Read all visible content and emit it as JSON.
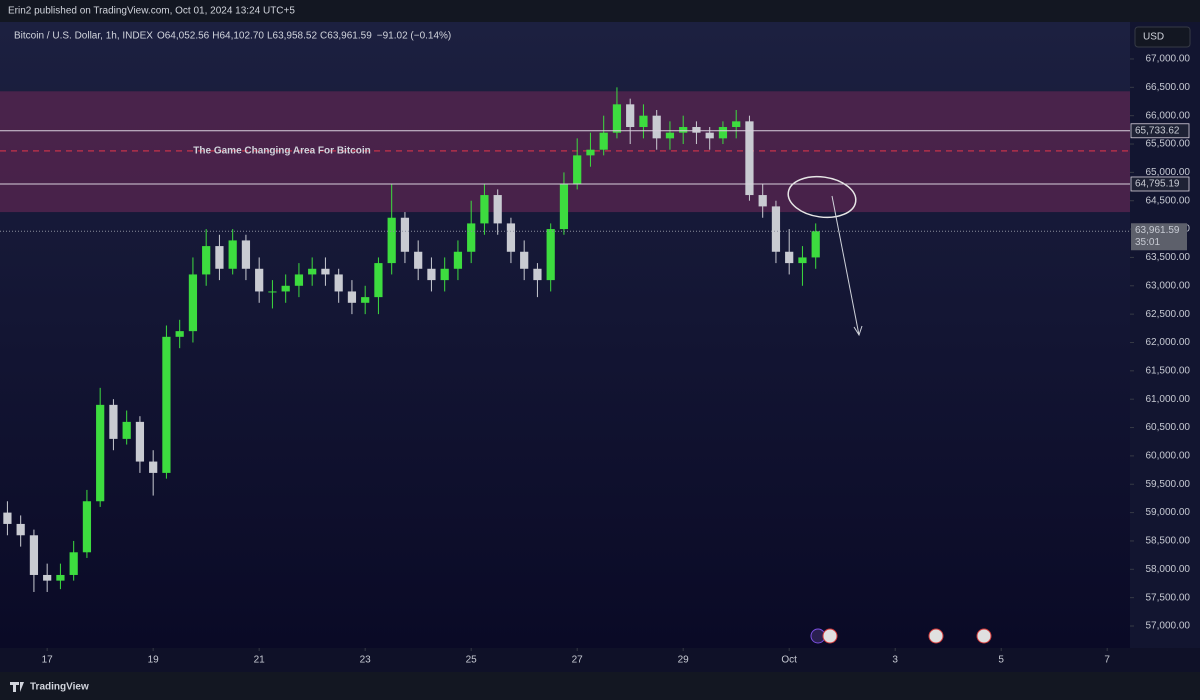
{
  "header": {
    "published": "Erin2 published on TradingView.com, Oct 01, 2024 13:24 UTC+5"
  },
  "footer": {
    "brand": "TradingView"
  },
  "chart_data": {
    "type": "candlestick",
    "symbol": "Bitcoin / U.S. Dollar, 1h, INDEX",
    "quote": [
      {
        "key": "O",
        "value": "64,052.56"
      },
      {
        "key": "H",
        "value": "64,102.70"
      },
      {
        "key": "L",
        "value": "63,958.52"
      },
      {
        "key": "C",
        "value": "63,961.59"
      }
    ],
    "change": "−91.02 (−0.14%)",
    "currency": "USD",
    "annotation": "The Game Changing Area For Bitcoin",
    "up_color": "#3ddc3f",
    "down_color": "#c9cbd2",
    "zone": {
      "top": 66430,
      "bottom": 64300,
      "color": "#5a2550"
    },
    "dashed_line": {
      "value": 65380,
      "color": "#b0304a"
    },
    "hlines": [
      {
        "value": 65733.62,
        "label": "65,733.62"
      },
      {
        "value": 64795.19,
        "label": "64,795.19"
      }
    ],
    "last_price": {
      "value": 63961.59,
      "label": "63,961.59",
      "countdown": "35:01"
    },
    "x": [
      -0.75,
      -0.5,
      -0.25,
      0,
      0.25,
      0.5,
      0.75,
      1,
      1.25,
      1.5,
      1.75,
      2,
      2.25,
      2.5,
      2.75,
      3,
      3.25,
      3.5,
      3.75,
      4,
      4.25,
      4.5,
      4.75,
      5,
      5.25,
      5.5,
      5.75,
      6,
      6.25,
      6.5,
      6.75,
      7,
      7.25,
      7.5,
      7.75,
      8,
      8.25,
      8.5,
      8.75,
      9,
      9.25,
      9.5,
      9.75,
      10,
      10.25,
      10.5,
      10.75,
      11,
      11.25,
      11.5,
      11.75,
      12,
      12.25,
      12.5,
      12.75,
      13,
      13.25,
      13.5,
      13.75,
      14,
      14.25,
      14.5
    ],
    "open": [
      59000,
      58800,
      58600,
      57900,
      57800,
      57900,
      58300,
      59200,
      60900,
      60300,
      60600,
      59900,
      59700,
      62100,
      62200,
      63200,
      63700,
      63300,
      63800,
      63300,
      62900,
      62900,
      63000,
      63200,
      63300,
      63200,
      62900,
      62700,
      62800,
      63400,
      64200,
      63600,
      63300,
      63100,
      63300,
      63600,
      64100,
      64600,
      64100,
      63600,
      63300,
      63100,
      64000,
      64800,
      65300,
      65400,
      65700,
      66200,
      65800,
      66000,
      65600,
      65700,
      65800,
      65700,
      65600,
      65800,
      65900,
      64600,
      64400,
      63600,
      63400,
      63500
    ],
    "high": [
      59200,
      58950,
      58700,
      58100,
      58100,
      58500,
      59400,
      61200,
      61000,
      60800,
      60700,
      60100,
      62300,
      62400,
      63500,
      64000,
      63900,
      64000,
      63900,
      63500,
      63100,
      63200,
      63400,
      63500,
      63500,
      63300,
      63100,
      63000,
      63500,
      64800,
      64300,
      63800,
      63500,
      63500,
      63800,
      64500,
      64800,
      64700,
      64200,
      63800,
      63400,
      64100,
      65000,
      65600,
      65700,
      66000,
      66500,
      66300,
      66200,
      66100,
      65900,
      66000,
      65900,
      65800,
      65900,
      66100,
      66000,
      64800,
      64500,
      64000,
      63700,
      64100
    ],
    "low": [
      58600,
      58400,
      57600,
      57600,
      57650,
      57800,
      58200,
      59100,
      60100,
      60200,
      59700,
      59300,
      59600,
      61900,
      62000,
      63000,
      63100,
      63200,
      63100,
      62700,
      62600,
      62700,
      62800,
      63000,
      63000,
      62700,
      62500,
      62500,
      62500,
      63200,
      63400,
      63100,
      62900,
      62900,
      63100,
      63400,
      63900,
      63900,
      63400,
      63100,
      62800,
      62900,
      63900,
      64700,
      65100,
      65300,
      65600,
      65500,
      65600,
      65400,
      65400,
      65500,
      65500,
      65400,
      65500,
      65600,
      64500,
      64200,
      63400,
      63200,
      63000,
      63300
    ],
    "close": [
      58800,
      58600,
      57900,
      57800,
      57900,
      58300,
      59200,
      60900,
      60300,
      60600,
      59900,
      59700,
      62100,
      62200,
      63200,
      63700,
      63300,
      63800,
      63300,
      62900,
      62900,
      63000,
      63200,
      63300,
      63200,
      62900,
      62700,
      62800,
      63400,
      64200,
      63600,
      63300,
      63100,
      63300,
      63600,
      64100,
      64600,
      64100,
      63600,
      63300,
      63100,
      64000,
      64800,
      65300,
      65400,
      65700,
      66200,
      65800,
      66000,
      65600,
      65700,
      65800,
      65700,
      65600,
      65800,
      65900,
      64600,
      64400,
      63600,
      63400,
      63500,
      63961.59
    ],
    "xlim": [
      -0.89,
      20.43
    ],
    "ylim": [
      56612,
      67652
    ],
    "xticks": [
      {
        "value": 0,
        "label": "17"
      },
      {
        "value": 2,
        "label": "19"
      },
      {
        "value": 4,
        "label": "21"
      },
      {
        "value": 6,
        "label": "23"
      },
      {
        "value": 8,
        "label": "25"
      },
      {
        "value": 10,
        "label": "27"
      },
      {
        "value": 12,
        "label": "29"
      },
      {
        "value": 14,
        "label": "Oct"
      },
      {
        "value": 16,
        "label": "3"
      },
      {
        "value": 18,
        "label": "5"
      },
      {
        "value": 20,
        "label": "7"
      }
    ],
    "yticks": [
      {
        "value": 57000,
        "label": "57,000.00"
      },
      {
        "value": 57500,
        "label": "57,500.00"
      },
      {
        "value": 58000,
        "label": "58,000.00"
      },
      {
        "value": 58500,
        "label": "58,500.00"
      },
      {
        "value": 59000,
        "label": "59,000.00"
      },
      {
        "value": 59500,
        "label": "59,500.00"
      },
      {
        "value": 60000,
        "label": "60,000.00"
      },
      {
        "value": 60500,
        "label": "60,500.00"
      },
      {
        "value": 61000,
        "label": "61,000.00"
      },
      {
        "value": 61500,
        "label": "61,500.00"
      },
      {
        "value": 62000,
        "label": "62,000.00"
      },
      {
        "value": 62500,
        "label": "62,500.00"
      },
      {
        "value": 63000,
        "label": "63,000.00"
      },
      {
        "value": 63500,
        "label": "63,500.00"
      },
      {
        "value": 64000,
        "label": "64,000.00"
      },
      {
        "value": 64500,
        "label": "64,500.00"
      },
      {
        "value": 65000,
        "label": "65,000.00"
      },
      {
        "value": 65500,
        "label": "65,500.00"
      },
      {
        "value": 66000,
        "label": "66,000.00"
      },
      {
        "value": 66500,
        "label": "66,500.00"
      },
      {
        "value": 67000,
        "label": "67,000.00"
      }
    ]
  }
}
